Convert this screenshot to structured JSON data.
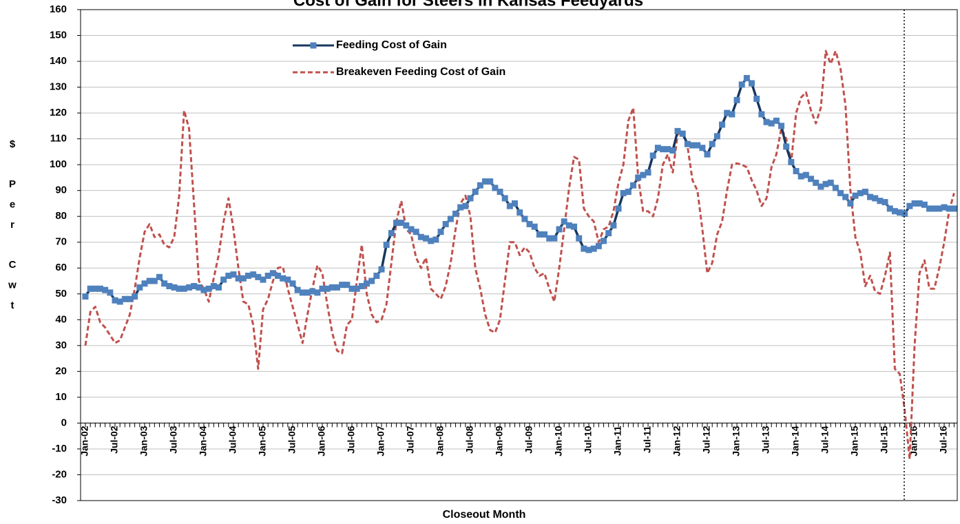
{
  "chart_data": {
    "type": "line",
    "title": "Cost of Gain for Steers in Kansas Feedyards",
    "x_label": "Closeout Month",
    "y_label": [
      "$",
      "P",
      "e",
      "r",
      "C",
      "w",
      "t"
    ],
    "ylim": [
      -30,
      160
    ],
    "yticks": [
      -30,
      -20,
      -10,
      0,
      10,
      20,
      30,
      40,
      50,
      60,
      70,
      80,
      90,
      100,
      110,
      120,
      130,
      140,
      150,
      160
    ],
    "grid": true,
    "categories": [
      "Jan-02",
      null,
      null,
      null,
      null,
      null,
      "Jul-02",
      null,
      null,
      null,
      null,
      null,
      "Jan-03",
      null,
      null,
      null,
      null,
      null,
      "Jul-03",
      null,
      null,
      null,
      null,
      null,
      "Jan-04",
      null,
      null,
      null,
      null,
      null,
      "Jul-04",
      null,
      null,
      null,
      null,
      null,
      "Jan-05",
      null,
      null,
      null,
      null,
      null,
      "Jul-05",
      null,
      null,
      null,
      null,
      null,
      "Jan-06",
      null,
      null,
      null,
      null,
      null,
      "Jul-06",
      null,
      null,
      null,
      null,
      null,
      "Jan-07",
      null,
      null,
      null,
      null,
      null,
      "Jul-07",
      null,
      null,
      null,
      null,
      null,
      "Jan-08",
      null,
      null,
      null,
      null,
      null,
      "Jul-08",
      null,
      null,
      null,
      null,
      null,
      "Jan-09",
      null,
      null,
      null,
      null,
      null,
      "Jul-09",
      null,
      null,
      null,
      null,
      null,
      "Jan-10",
      null,
      null,
      null,
      null,
      null,
      "Jul-10",
      null,
      null,
      null,
      null,
      null,
      "Jan-11",
      null,
      null,
      null,
      null,
      null,
      "Jul-11",
      null,
      null,
      null,
      null,
      null,
      "Jan-12",
      null,
      null,
      null,
      null,
      null,
      "Jul-12",
      null,
      null,
      null,
      null,
      null,
      "Jan-13",
      null,
      null,
      null,
      null,
      null,
      "Jul-13",
      null,
      null,
      null,
      null,
      null,
      "Jan-14",
      null,
      null,
      null,
      null,
      null,
      "Jul-14",
      null,
      null,
      null,
      null,
      null,
      "Jan-15",
      null,
      null,
      null,
      null,
      null,
      "Jul-15",
      null,
      null,
      null,
      null,
      null,
      "Jan-16",
      null,
      null,
      null,
      null,
      null,
      "Jul-16",
      null,
      null
    ],
    "series": [
      {
        "name": "Feeding Cost of Gain",
        "color": "#4f81bd",
        "line_color": "#17375e",
        "style": "solid",
        "marker": "square",
        "values": [
          49,
          52,
          52,
          52,
          51.5,
          50.5,
          47.5,
          47,
          48,
          48,
          49,
          52.5,
          54,
          55,
          55,
          56.5,
          54,
          53,
          52.5,
          52,
          52,
          52.5,
          53,
          52.5,
          51.5,
          52,
          53,
          52.5,
          55.5,
          57,
          57.5,
          56,
          56,
          57,
          57.5,
          56.5,
          55.5,
          57,
          58,
          57,
          56,
          55.5,
          54,
          51.5,
          50.5,
          50.5,
          51,
          50.5,
          52,
          52,
          52.5,
          52.5,
          53.5,
          53.5,
          52,
          52,
          53,
          54,
          55,
          57,
          59.5,
          69,
          73.5,
          77.5,
          77.5,
          76.5,
          75,
          74,
          72,
          71.5,
          70.5,
          71,
          74,
          77,
          79,
          81,
          83.5,
          84,
          87,
          89.5,
          92,
          93.5,
          93.5,
          91,
          89.5,
          87,
          84,
          85,
          81.5,
          79,
          77,
          76,
          73,
          73,
          71.5,
          71.5,
          75,
          78,
          76.5,
          76,
          71.5,
          67.5,
          67,
          67.5,
          68.5,
          70.5,
          73.5,
          76.5,
          83,
          89,
          89.5,
          92,
          95,
          96,
          97,
          103.5,
          106.5,
          106,
          106,
          105.5,
          113,
          112,
          108,
          107.5,
          107.5,
          106.5,
          104,
          108,
          111,
          115.5,
          120,
          119.5,
          125,
          131,
          133.5,
          131.5,
          125.5,
          119.5,
          116.5,
          116,
          117,
          115,
          107,
          101,
          97.5,
          95.5,
          96,
          94.5,
          93,
          91.5,
          92.5,
          93,
          91,
          89,
          87.5,
          85,
          88,
          89,
          89.5,
          87.5,
          87,
          86,
          85.5,
          83,
          82,
          81.5,
          81,
          84,
          85,
          85,
          84.5,
          83,
          83,
          83,
          83.5,
          83,
          83
        ]
      },
      {
        "name": "Breakeven Feeding Cost of Gain",
        "color": "#c0504d",
        "style": "dashed",
        "values": [
          30,
          43,
          45,
          39,
          37,
          34,
          31,
          32,
          37,
          42,
          52,
          64,
          74,
          77,
          72,
          73,
          69,
          68,
          72,
          88,
          121,
          114,
          85,
          55,
          52,
          47,
          56,
          65,
          78,
          87,
          75,
          60,
          47,
          46,
          38,
          21,
          44,
          48,
          55,
          60,
          60.5,
          52,
          45,
          38,
          31,
          42,
          52,
          61,
          58,
          46,
          35,
          28,
          27,
          38,
          40,
          55,
          69,
          50,
          42,
          39,
          40,
          46,
          62,
          78,
          86,
          75,
          73,
          64,
          60,
          64,
          52,
          50,
          48,
          53,
          62,
          75,
          85,
          88,
          80,
          60,
          52,
          42,
          36,
          35,
          40,
          55,
          70,
          70,
          65,
          68,
          66,
          60,
          57,
          58,
          52,
          47,
          60,
          75,
          91,
          103,
          102,
          83,
          80,
          78,
          70,
          75,
          76,
          82,
          93,
          100,
          117,
          122,
          95,
          82,
          82,
          80,
          87,
          100,
          104,
          97,
          112,
          112,
          107,
          94,
          90,
          75,
          58,
          62,
          73,
          78,
          90,
          100,
          100.5,
          100,
          99,
          94,
          90,
          84,
          87,
          99,
          104,
          114,
          110,
          101,
          120,
          126,
          128,
          121,
          116,
          122,
          144,
          139,
          144,
          137,
          123,
          90,
          72,
          66,
          53,
          57,
          51,
          50,
          57,
          66,
          21,
          19,
          5,
          -14,
          30,
          58,
          63,
          52,
          52,
          60,
          70,
          82,
          89
        ]
      }
    ]
  }
}
